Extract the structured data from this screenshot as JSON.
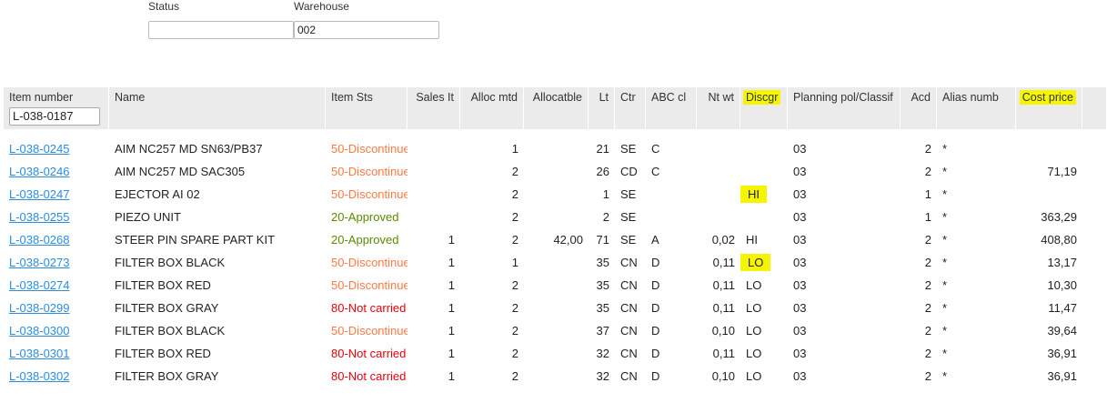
{
  "filters": {
    "status_label": "Status",
    "status_value": "",
    "warehouse_label": "Warehouse",
    "warehouse_value": "002"
  },
  "table": {
    "columns": [
      "Item number",
      "Name",
      "Item Sts",
      "Sales It",
      "Alloc mtd",
      "Allocatble",
      "Lt",
      "Ctr",
      "ABC cl",
      "Nt wt",
      "Discgr",
      "Planning pol/Classif",
      "Acd",
      "Alias numb",
      "Cost price"
    ],
    "item_filter": "L-038-0187",
    "highlighted_columns": [
      "Discgr",
      "Cost price"
    ],
    "highlight_color": "#f5f500",
    "status_colors": {
      "50": "#ff7a45",
      "20": "#5a8a00",
      "80": "#e8000b"
    },
    "rows": [
      {
        "item": "L-038-0245",
        "name": "AIM NC257 MD SN63/PB37",
        "sts": "50-Discontinued",
        "stsc": "50",
        "sales": "",
        "alloc": "1",
        "allocatble": "",
        "lt": "21",
        "ctr": "SE",
        "abc": "C",
        "ntwt": "",
        "disc": "",
        "hl": false,
        "plan": "03",
        "acd": "2",
        "alias": "*",
        "cost": ""
      },
      {
        "item": "L-038-0246",
        "name": "AIM NC257 MD SAC305",
        "sts": "50-Discontinued",
        "stsc": "50",
        "sales": "",
        "alloc": "2",
        "allocatble": "",
        "lt": "26",
        "ctr": "CD",
        "abc": "C",
        "ntwt": "",
        "disc": "",
        "hl": false,
        "plan": "03",
        "acd": "2",
        "alias": "*",
        "cost": "71,19"
      },
      {
        "item": "L-038-0247",
        "name": "EJECTOR AI 02",
        "sts": "50-Discontinued",
        "stsc": "50",
        "sales": "",
        "alloc": "2",
        "allocatble": "",
        "lt": "1",
        "ctr": "SE",
        "abc": "",
        "ntwt": "",
        "disc": "HI",
        "hl": true,
        "plan": "03",
        "acd": "1",
        "alias": "*",
        "cost": ""
      },
      {
        "item": "L-038-0255",
        "name": "PIEZO UNIT",
        "sts": "20-Approved",
        "stsc": "20",
        "sales": "",
        "alloc": "2",
        "allocatble": "",
        "lt": "2",
        "ctr": "SE",
        "abc": "",
        "ntwt": "",
        "disc": "",
        "hl": false,
        "plan": "03",
        "acd": "1",
        "alias": "*",
        "cost": "363,29"
      },
      {
        "item": "L-038-0268",
        "name": "STEER PIN SPARE PART KIT",
        "sts": "20-Approved",
        "stsc": "20",
        "sales": "1",
        "alloc": "2",
        "allocatble": "42,00",
        "lt": "71",
        "ctr": "SE",
        "abc": "A",
        "ntwt": "0,02",
        "disc": "HI",
        "hl": false,
        "plan": "03",
        "acd": "2",
        "alias": "*",
        "cost": "408,80"
      },
      {
        "item": "L-038-0273",
        "name": "FILTER BOX BLACK",
        "sts": "50-Discontinued",
        "stsc": "50",
        "sales": "1",
        "alloc": "1",
        "allocatble": "",
        "lt": "35",
        "ctr": "CN",
        "abc": "D",
        "ntwt": "0,11",
        "disc": "LO",
        "hl": true,
        "plan": "03",
        "acd": "2",
        "alias": "*",
        "cost": "13,17"
      },
      {
        "item": "L-038-0274",
        "name": "FILTER BOX RED",
        "sts": "50-Discontinued",
        "stsc": "50",
        "sales": "1",
        "alloc": "2",
        "allocatble": "",
        "lt": "35",
        "ctr": "CN",
        "abc": "D",
        "ntwt": "0,11",
        "disc": "LO",
        "hl": false,
        "plan": "03",
        "acd": "2",
        "alias": "*",
        "cost": "10,30"
      },
      {
        "item": "L-038-0299",
        "name": "FILTER BOX GRAY",
        "sts": "80-Not carried",
        "stsc": "80",
        "sales": "1",
        "alloc": "2",
        "allocatble": "",
        "lt": "35",
        "ctr": "CN",
        "abc": "D",
        "ntwt": "0,11",
        "disc": "LO",
        "hl": false,
        "plan": "03",
        "acd": "2",
        "alias": "*",
        "cost": "11,47"
      },
      {
        "item": "L-038-0300",
        "name": "FILTER BOX BLACK",
        "sts": "50-Discontinued",
        "stsc": "50",
        "sales": "1",
        "alloc": "2",
        "allocatble": "",
        "lt": "37",
        "ctr": "CN",
        "abc": "D",
        "ntwt": "0,10",
        "disc": "LO",
        "hl": false,
        "plan": "03",
        "acd": "2",
        "alias": "*",
        "cost": "39,64"
      },
      {
        "item": "L-038-0301",
        "name": "FILTER BOX RED",
        "sts": "80-Not carried",
        "stsc": "80",
        "sales": "1",
        "alloc": "2",
        "allocatble": "",
        "lt": "32",
        "ctr": "CN",
        "abc": "D",
        "ntwt": "0,11",
        "disc": "LO",
        "hl": false,
        "plan": "03",
        "acd": "2",
        "alias": "*",
        "cost": "36,91"
      },
      {
        "item": "L-038-0302",
        "name": "FILTER BOX GRAY",
        "sts": "80-Not carried",
        "stsc": "80",
        "sales": "1",
        "alloc": "2",
        "allocatble": "",
        "lt": "32",
        "ctr": "CN",
        "abc": "D",
        "ntwt": "0,10",
        "disc": "LO",
        "hl": false,
        "plan": "03",
        "acd": "2",
        "alias": "*",
        "cost": "36,91"
      }
    ]
  }
}
